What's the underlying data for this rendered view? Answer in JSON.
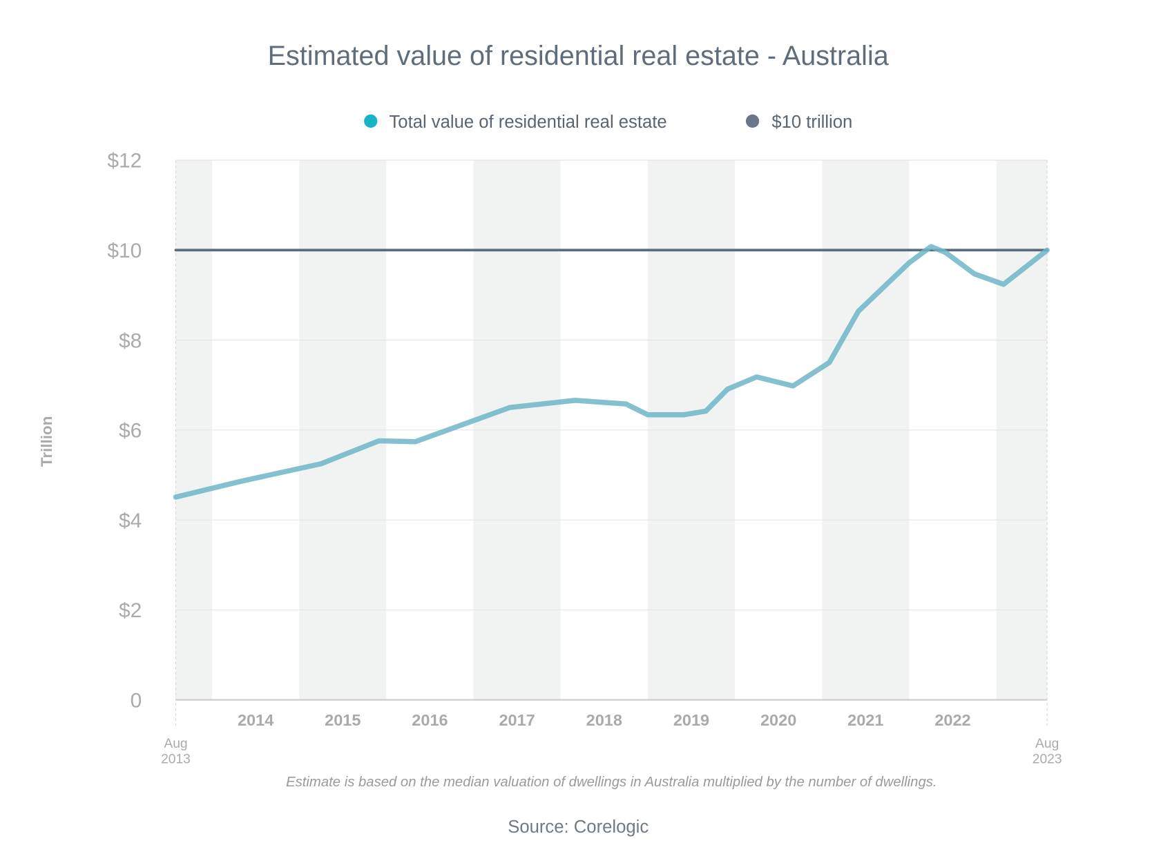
{
  "chart_data": {
    "type": "line",
    "title": "Estimated value of residential real estate - Australia",
    "ylabel": "Trillion",
    "xlabel": "",
    "ylim": [
      0,
      12
    ],
    "xlim": [
      "2013-08",
      "2023-08"
    ],
    "grid": true,
    "legend_placement": "top",
    "y_ticks": [
      "0",
      "$2",
      "$4",
      "$6",
      "$8",
      "$10",
      "$12"
    ],
    "x_ticks": [
      "2014",
      "2015",
      "2016",
      "2017",
      "2018",
      "2019",
      "2020",
      "2021",
      "2022"
    ],
    "x_start_label": [
      "Aug",
      "2013"
    ],
    "x_end_label": [
      "Aug",
      "2023"
    ],
    "series": [
      {
        "name": "Total value of residential real estate",
        "color": "#6fb5c8",
        "legend_color": "#17b4c8",
        "x": [
          "2013-08",
          "2014-05",
          "2015-04",
          "2015-12",
          "2016-05",
          "2017-06",
          "2018-03",
          "2018-10",
          "2019-01",
          "2019-06",
          "2019-09",
          "2019-12",
          "2020-04",
          "2020-09",
          "2021-02",
          "2021-06",
          "2022-01",
          "2022-04",
          "2022-06",
          "2022-10",
          "2023-02",
          "2023-08"
        ],
        "values": [
          4.51,
          4.86,
          5.25,
          5.76,
          5.74,
          6.5,
          6.66,
          6.58,
          6.34,
          6.34,
          6.42,
          6.91,
          7.18,
          6.98,
          7.5,
          8.64,
          9.72,
          10.08,
          9.95,
          9.47,
          9.24,
          10.0
        ]
      },
      {
        "name": "$10 trillion",
        "color": "#5d6b7d",
        "legend_color": "#6b7689",
        "x": [
          "2013-08",
          "2023-08"
        ],
        "values": [
          10,
          10
        ]
      }
    ],
    "note": "Estimate is based on the median valuation of dwellings in Australia multiplied by the number of dwellings.",
    "source": "Source: Corelogic"
  }
}
